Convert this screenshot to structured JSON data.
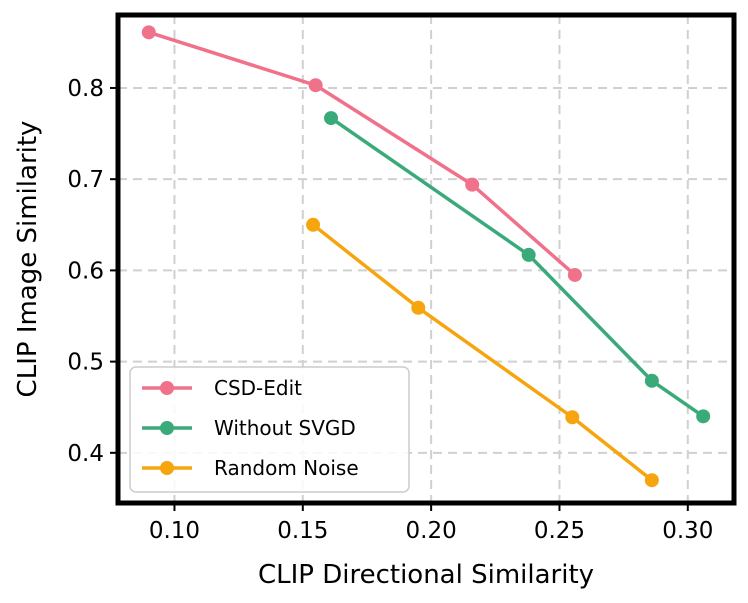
{
  "chart_data": {
    "type": "line",
    "title": "",
    "xlabel": "CLIP Directional Similarity",
    "ylabel": "CLIP Image Similarity",
    "xlim": [
      0.078,
      0.318
    ],
    "ylim": [
      0.345,
      0.88
    ],
    "xticks": [
      0.1,
      0.15,
      0.2,
      0.25,
      0.3
    ],
    "xtick_labels": [
      "0.10",
      "0.15",
      "0.20",
      "0.25",
      "0.30"
    ],
    "yticks": [
      0.4,
      0.5,
      0.6,
      0.7,
      0.8
    ],
    "ytick_labels": [
      "0.4",
      "0.5",
      "0.6",
      "0.7",
      "0.8"
    ],
    "grid": true,
    "legend_position": "bottom-left",
    "series": [
      {
        "name": "CSD-Edit",
        "color": "#f0718a",
        "x": [
          0.09,
          0.155,
          0.216,
          0.256
        ],
        "y": [
          0.861,
          0.803,
          0.694,
          0.595
        ]
      },
      {
        "name": "Without SVGD",
        "color": "#3aaa7b",
        "x": [
          0.161,
          0.238,
          0.286,
          0.306
        ],
        "y": [
          0.767,
          0.617,
          0.479,
          0.44
        ]
      },
      {
        "name": "Random Noise",
        "color": "#f6a50f",
        "x": [
          0.154,
          0.195,
          0.255,
          0.286
        ],
        "y": [
          0.65,
          0.559,
          0.439,
          0.37
        ]
      }
    ]
  }
}
